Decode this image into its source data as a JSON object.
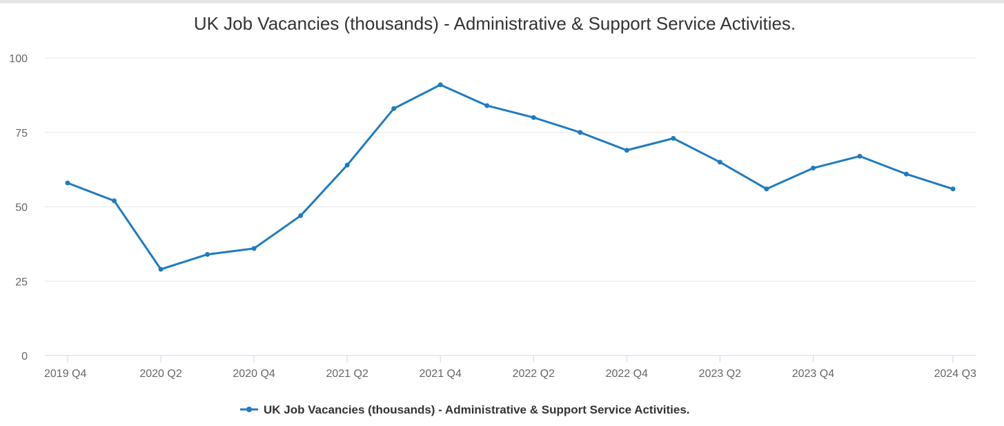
{
  "chart_data": {
    "type": "line",
    "title": "UK Job Vacancies (thousands) - Administrative & Support Service Activities.",
    "xlabel": "",
    "ylabel": "",
    "ylim": [
      0,
      100
    ],
    "yticks": [
      0,
      25,
      50,
      75,
      100
    ],
    "categories": [
      "2019 Q4",
      "2020 Q1",
      "2020 Q2",
      "2020 Q3",
      "2020 Q4",
      "2021 Q1",
      "2021 Q2",
      "2021 Q3",
      "2021 Q4",
      "2022 Q1",
      "2022 Q2",
      "2022 Q3",
      "2022 Q4",
      "2023 Q1",
      "2023 Q2",
      "2023 Q3",
      "2023 Q4",
      "2024 Q1",
      "2024 Q2",
      "2024 Q3"
    ],
    "xtick_labels": [
      "2019 Q4",
      "2020 Q2",
      "2020 Q4",
      "2021 Q2",
      "2021 Q4",
      "2022 Q2",
      "2022 Q4",
      "2023 Q2",
      "2023 Q4",
      "2024 Q3"
    ],
    "grid": true,
    "legend_position": "bottom-center",
    "series": [
      {
        "name": "UK Job Vacancies (thousands) - Administrative & Support Service Activities.",
        "color": "#1f7bc1",
        "values": [
          58,
          52,
          29,
          34,
          36,
          47,
          64,
          83,
          91,
          84,
          80,
          75,
          69,
          73,
          65,
          56,
          63,
          67,
          61,
          56
        ]
      }
    ]
  }
}
